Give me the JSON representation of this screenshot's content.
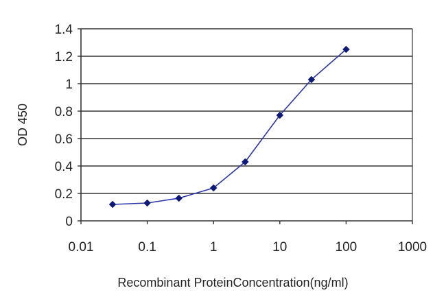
{
  "chart_data": {
    "type": "line",
    "xlabel": "Recombinant ProteinConcentration(ng/ml)",
    "ylabel": "OD 450",
    "x_scale": "log",
    "xlim": [
      0.01,
      1000
    ],
    "ylim": [
      0,
      1.4
    ],
    "x_ticks": [
      0.01,
      0.1,
      1,
      10,
      100,
      1000
    ],
    "x_tick_labels": [
      "0.01",
      "0.1",
      "1",
      "10",
      "100",
      "1000"
    ],
    "y_ticks": [
      0,
      0.2,
      0.4,
      0.6,
      0.8,
      1,
      1.2,
      1.4
    ],
    "y_tick_labels": [
      "0",
      "0.2",
      "0.4",
      "0.6",
      "0.8",
      "1",
      "1.2",
      "1.4"
    ],
    "grid": "horizontal",
    "series": [
      {
        "x": [
          0.03,
          0.1,
          0.3,
          1,
          3,
          10,
          30,
          100
        ],
        "y": [
          0.12,
          0.13,
          0.165,
          0.24,
          0.43,
          0.77,
          1.03,
          1.25
        ],
        "color": "#2b35a8",
        "marker": "diamond"
      }
    ]
  }
}
